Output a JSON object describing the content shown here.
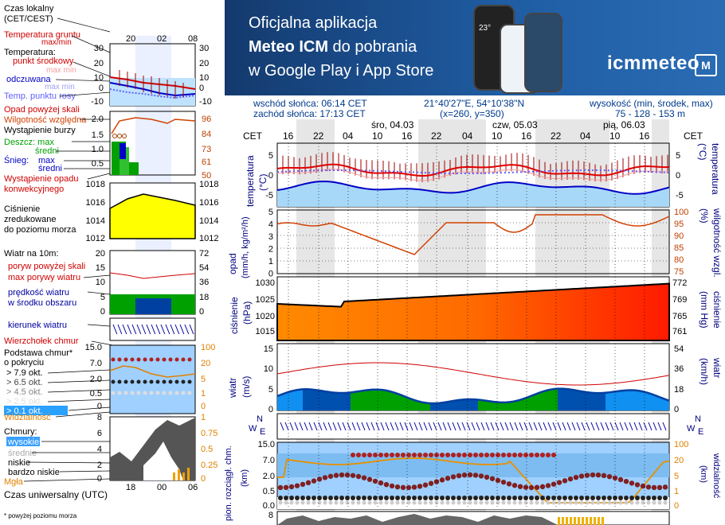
{
  "banner": {
    "line1": "Oficjalna aplikacja",
    "line2a": "Meteo ICM",
    "line2b": " do pobrania",
    "line3": "w Google Play i App Store",
    "logo": "icmmeteo",
    "logo_mark": "M",
    "phone_text": "23°"
  },
  "info": {
    "sunrise": "wschód słońca: 06:14 CET",
    "sunset": "zachód słońca: 17:13 CET",
    "coords": "21°40'27\"E, 54°10'38\"N",
    "grid": "(x=260,  y=350)",
    "height_label": "wysokość (min, środek, max)",
    "height_values": "75 - 128 - 153 m"
  },
  "legend": {
    "time_local": "Czas lokalny",
    "time_local2": "(CET/CEST)",
    "temp_ground": "Temperatura gruntu",
    "temp_ground2": "max/min",
    "temperature": "Temperatura:",
    "midpoint": "punkt środkowy",
    "max_min": "max min",
    "apparent": "odczuwana",
    "apparent2": "max min",
    "dew_point": "Temp. punktu rosy",
    "precip_over": "Opad powyżej skali",
    "humidity": "Wilgotność względna",
    "storm": "Wystąpienie burzy",
    "rain_max": "Deszcz: max",
    "rain_mid": "średni",
    "snow": "Śnieg:",
    "snow_max": "max",
    "snow_mid": "średni",
    "precip_occ": "Wystąpienie opadu",
    "precip_occ2": "konwekcyjnego",
    "pressure1": "Ciśnienie",
    "pressure2": "zredukowane",
    "pressure3": "do poziomu morza",
    "wind10": "Wiatr na 10m:",
    "gusts_over": "poryw powyżej skali",
    "gusts_max": "max porywy wiatru",
    "wind_speed": "prędkość wiatru",
    "wind_speed2": "w środku obszaru",
    "wind_dir": "kierunek wiatru",
    "cloud_top": "Wierzchołek chmur",
    "cloud_base": "Podstawa chmur*",
    "cloud_base2": "o pokryciu",
    "okt79": "> 7.9 okt.",
    "okt65": "> 6.5 okt.",
    "okt45": "> 4.5 okt.",
    "okt25": "> 2.5 okt.",
    "okt01": "> 0.1 okt.",
    "visibility": "Widzialność",
    "clouds": "Chmury:",
    "high": "wysokie",
    "mid": "średnie",
    "low": "niskie",
    "very_low": "bardzo niskie",
    "fog": "Mgła",
    "utc": "Czas uniwersalny (UTC)",
    "footnote": "* powyżej poziomu morza"
  },
  "mini_axes": {
    "top_ticks": [
      "20",
      "02",
      "08"
    ],
    "bottom_ticks": [
      "18",
      "00",
      "06"
    ],
    "temp_l": [
      "30",
      "20",
      "10",
      "0",
      "-10"
    ],
    "temp_r": [
      "30",
      "20",
      "10",
      "0",
      "-10"
    ],
    "precip_l": [
      "2.0",
      "1.5",
      "1.0",
      "0.5"
    ],
    "precip_r": [
      "96",
      "84",
      "73",
      "61",
      "50"
    ],
    "press_l": [
      "1018",
      "1016",
      "1014",
      "1012"
    ],
    "press_r": [
      "1018",
      "1016",
      "1014",
      "1012"
    ],
    "wind_l": [
      "20",
      "15",
      "10",
      "5",
      "0"
    ],
    "wind_r": [
      "72",
      "54",
      "36",
      "18",
      "0"
    ],
    "cloud_l": [
      "15.0",
      "7.0",
      "2.0",
      "0.5",
      "0"
    ],
    "cloud_r": [
      "100",
      "20",
      "5",
      "1",
      "0"
    ],
    "low_l": [
      "8",
      "6",
      "4",
      "2",
      "0"
    ],
    "low_r": [
      "1",
      "0.75",
      "0.5",
      "0.25",
      "0"
    ]
  },
  "main_axes": {
    "cet": "CET",
    "top_hours": [
      "16",
      "22",
      "04",
      "10",
      "16",
      "22",
      "04",
      "10",
      "16",
      "22",
      "04",
      "10",
      "16"
    ],
    "days": [
      "śro, 04.03",
      "czw, 05.03",
      "pią, 06.03"
    ],
    "temp_label": "temperatura",
    "temp_unit": "(°C)",
    "temp_l": [
      "5",
      "0",
      "-5"
    ],
    "temp_r": [
      "5",
      "0",
      "-5"
    ],
    "precip_label": "opad",
    "precip_unit": "(mm/h, kg/m²/h)",
    "humid_label": "wilgotność wzgl.",
    "humid_unit": "(%)",
    "precip_l": [
      "5",
      "4",
      "3",
      "2",
      "1",
      "0"
    ],
    "humid_r": [
      "100",
      "95",
      "90",
      "85",
      "80",
      "75"
    ],
    "press_label": "ciśnienie",
    "press_unit": "(hPa)",
    "press_r_unit": "(mm Hg)",
    "press_l": [
      "1030",
      "1025",
      "1020",
      "1015"
    ],
    "press_r": [
      "772",
      "769",
      "765",
      "761"
    ],
    "wind_label": "wiatr",
    "wind_unit": "(m/s)",
    "wind_r_unit": "(km/h)",
    "wind_l": [
      "15",
      "10",
      "5",
      "0"
    ],
    "wind_r": [
      "54",
      "36",
      "18",
      "0"
    ],
    "cloud_label": "pion. rozciągł. chm.",
    "cloud_unit": "(km)",
    "vis_label": "widzialność",
    "vis_unit": "(km)",
    "cloud_l": [
      "15.0",
      "7.0",
      "2.0",
      "0.5",
      "0.0"
    ],
    "cloud_r": [
      "100",
      "20",
      "5",
      "1",
      "0"
    ],
    "bottom_l": "8",
    "compass_n": "N",
    "compass_w": "W",
    "compass_e": "E"
  },
  "colors": {
    "banner": "#1f5ca2",
    "temp_red": "#e00000",
    "temp_blue": "#0000c8",
    "humid": "#d04000",
    "rain_green": "#00a000",
    "pressure_yellow": "#ffff00",
    "wind_blue": "#0040a0"
  }
}
